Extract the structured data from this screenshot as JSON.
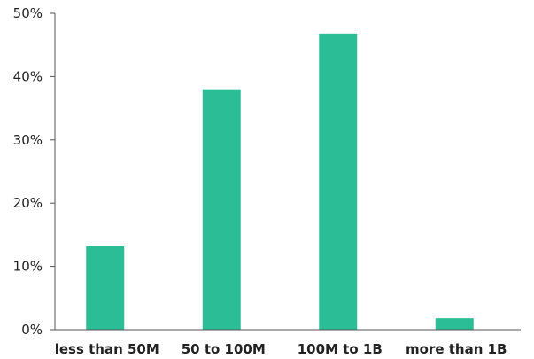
{
  "chart_data": {
    "type": "bar",
    "title": "",
    "xlabel": "",
    "ylabel": "",
    "categories": [
      "less than 50M",
      "50 to 100M",
      "100M to 1B",
      "more than 1B"
    ],
    "values": [
      13.2,
      38.0,
      46.8,
      1.8
    ],
    "ylim": [
      0,
      50
    ],
    "yticks": [
      0,
      10,
      20,
      30,
      40,
      50
    ],
    "ytick_labels": [
      "0%",
      "10%",
      "20%",
      "30%",
      "40%",
      "50%"
    ],
    "grid": false,
    "legend": "none",
    "bar_color": "#2bbd96"
  }
}
